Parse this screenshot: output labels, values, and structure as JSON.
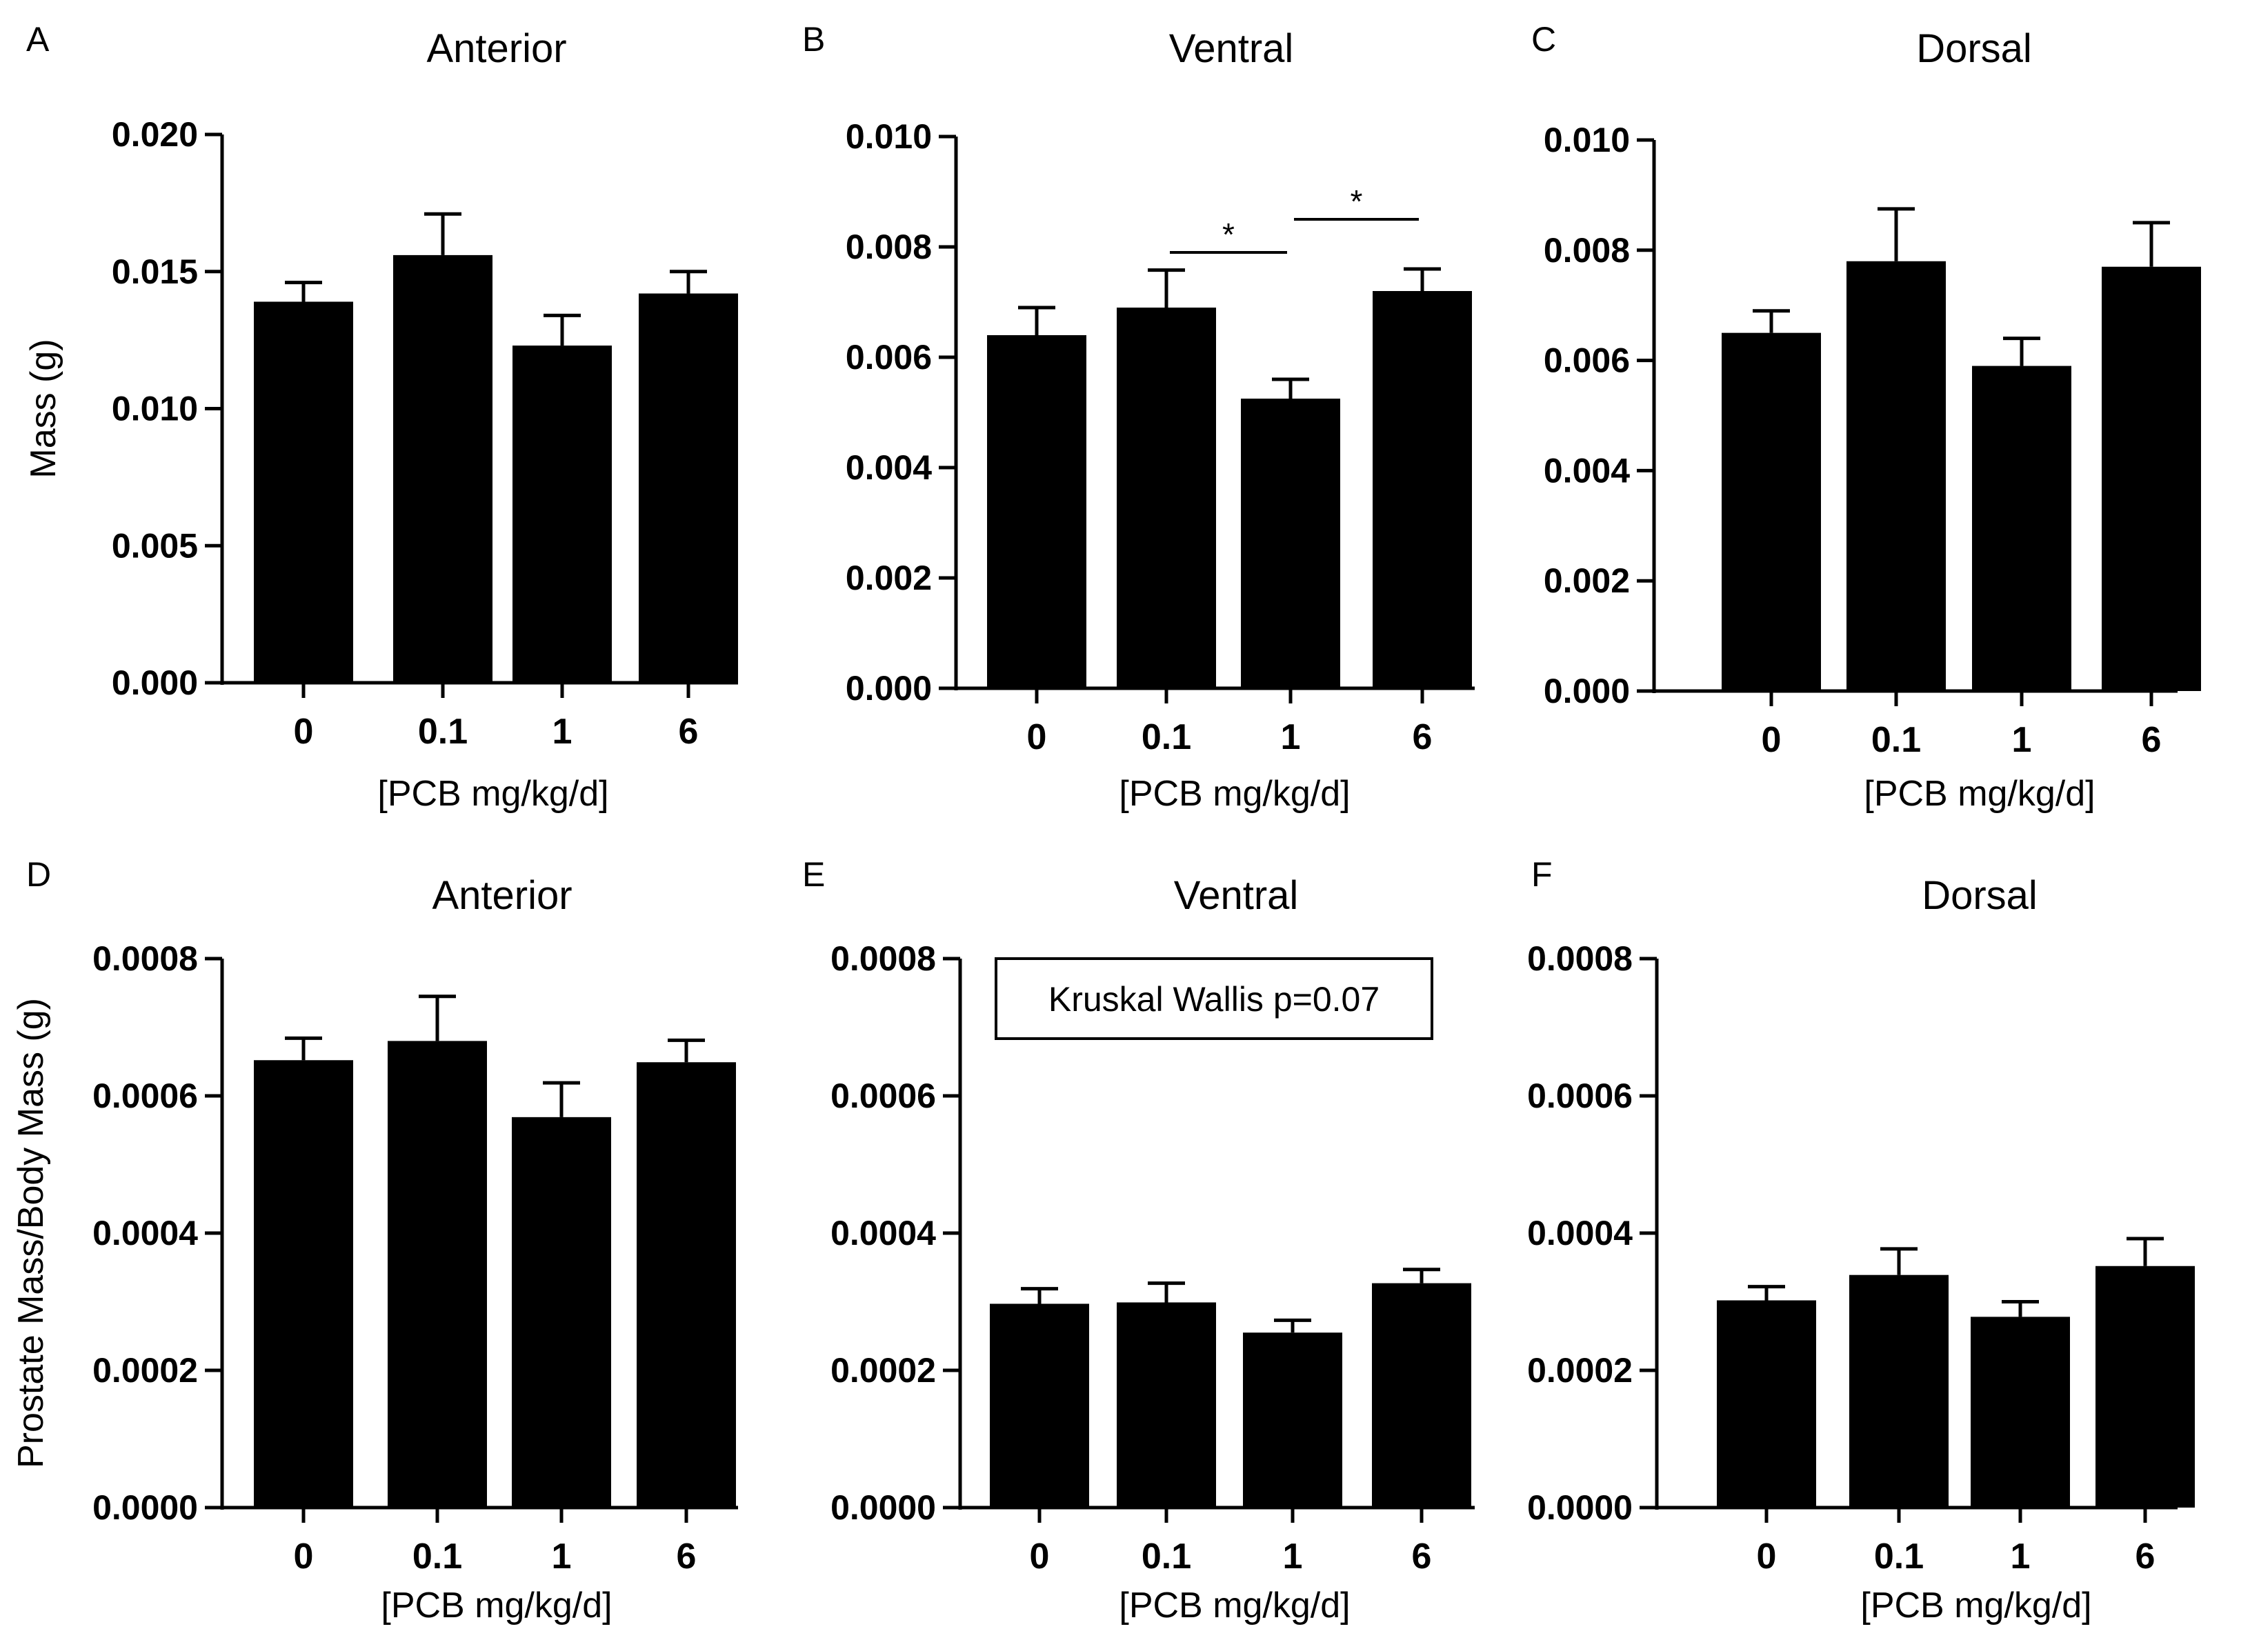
{
  "chart_data": [
    {
      "panel": "A",
      "type": "bar",
      "title": "Anterior",
      "categories": [
        "0",
        "0.1",
        "1",
        "6"
      ],
      "values": [
        0.0139,
        0.0156,
        0.0123,
        0.0142
      ],
      "errors": [
        0.0007,
        0.0015,
        0.0011,
        0.0008
      ],
      "ylim": [
        0,
        0.02
      ],
      "yticks": [
        "0.000",
        "0.005",
        "0.010",
        "0.015",
        "0.020"
      ],
      "ylabel": "Mass (g)",
      "xlabel": "[PCB mg/kg/d]",
      "significance": [],
      "annotation": "",
      "bar_color": "#000000",
      "grid": false
    },
    {
      "panel": "B",
      "type": "bar",
      "title": "Ventral",
      "categories": [
        "0",
        "0.1",
        "1",
        "6"
      ],
      "values": [
        0.0064,
        0.0069,
        0.00525,
        0.0072
      ],
      "errors": [
        0.0005,
        0.00068,
        0.00035,
        0.0004
      ],
      "ylim": [
        0,
        0.01
      ],
      "yticks": [
        "0.000",
        "0.002",
        "0.004",
        "0.006",
        "0.008",
        "0.010"
      ],
      "ylabel": "",
      "xlabel": "[PCB mg/kg/d]",
      "significance": [
        {
          "from": 1,
          "to": 2,
          "label": "*",
          "y": 0.0079
        },
        {
          "from": 2,
          "to": 3,
          "label": "*",
          "y": 0.0085
        }
      ],
      "annotation": "",
      "bar_color": "#000000",
      "grid": false
    },
    {
      "panel": "C",
      "type": "bar",
      "title": "Dorsal",
      "categories": [
        "0",
        "0.1",
        "1",
        "6"
      ],
      "values": [
        0.0065,
        0.0078,
        0.0059,
        0.0077
      ],
      "errors": [
        0.0004,
        0.00095,
        0.0005,
        0.0008
      ],
      "ylim": [
        0,
        0.01
      ],
      "yticks": [
        "0.000",
        "0.002",
        "0.004",
        "0.006",
        "0.008",
        "0.010"
      ],
      "ylabel": "",
      "xlabel": "[PCB mg/kg/d]",
      "significance": [],
      "annotation": "",
      "bar_color": "#000000",
      "grid": false
    },
    {
      "panel": "D",
      "type": "bar",
      "title": "Anterior",
      "categories": [
        "0",
        "0.1",
        "1",
        "6"
      ],
      "values": [
        0.000652,
        0.00068,
        0.000569,
        0.000649
      ],
      "errors": [
        3.2e-05,
        6.5e-05,
        5e-05,
        3.2e-05
      ],
      "ylim": [
        0,
        0.0008
      ],
      "yticks": [
        "0.0000",
        "0.0002",
        "0.0004",
        "0.0006",
        "0.0008"
      ],
      "ylabel": "Prostate Mass/Body Mass (g)",
      "xlabel": "[PCB mg/kg/d]",
      "significance": [],
      "annotation": "",
      "bar_color": "#000000",
      "grid": false
    },
    {
      "panel": "E",
      "type": "bar",
      "title": "Ventral",
      "categories": [
        "0",
        "0.1",
        "1",
        "6"
      ],
      "values": [
        0.000297,
        0.000299,
        0.000255,
        0.000327
      ],
      "errors": [
        2.2e-05,
        2.8e-05,
        1.8e-05,
        2e-05
      ],
      "ylim": [
        0,
        0.0008
      ],
      "yticks": [
        "0.0000",
        "0.0002",
        "0.0004",
        "0.0006",
        "0.0008"
      ],
      "ylabel": "",
      "xlabel": "[PCB mg/kg/d]",
      "significance": [],
      "annotation": "Kruskal Wallis  p=0.07",
      "bar_color": "#000000",
      "grid": false
    },
    {
      "panel": "F",
      "type": "bar",
      "title": "Dorsal",
      "categories": [
        "0",
        "0.1",
        "1",
        "6"
      ],
      "values": [
        0.000302,
        0.000339,
        0.000278,
        0.000352
      ],
      "errors": [
        2e-05,
        3.8e-05,
        2.2e-05,
        4e-05
      ],
      "ylim": [
        0,
        0.0008
      ],
      "yticks": [
        "0.0000",
        "0.0002",
        "0.0004",
        "0.0006",
        "0.0008"
      ],
      "ylabel": "",
      "xlabel": "[PCB mg/kg/d]",
      "significance": [],
      "annotation": "",
      "bar_color": "#000000",
      "grid": false
    }
  ]
}
